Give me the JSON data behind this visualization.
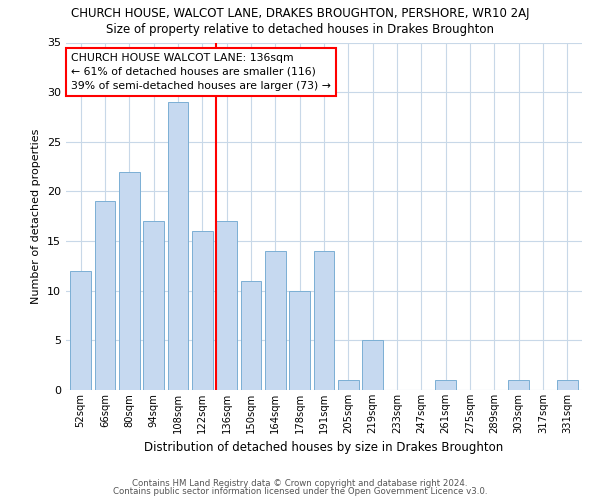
{
  "title_top": "CHURCH HOUSE, WALCOT LANE, DRAKES BROUGHTON, PERSHORE, WR10 2AJ",
  "title_sub": "Size of property relative to detached houses in Drakes Broughton",
  "xlabel": "Distribution of detached houses by size in Drakes Broughton",
  "ylabel": "Number of detached properties",
  "bin_labels": [
    "52sqm",
    "66sqm",
    "80sqm",
    "94sqm",
    "108sqm",
    "122sqm",
    "136sqm",
    "150sqm",
    "164sqm",
    "178sqm",
    "191sqm",
    "205sqm",
    "219sqm",
    "233sqm",
    "247sqm",
    "261sqm",
    "275sqm",
    "289sqm",
    "303sqm",
    "317sqm",
    "331sqm"
  ],
  "bar_values": [
    12,
    19,
    22,
    17,
    29,
    16,
    17,
    11,
    14,
    10,
    14,
    1,
    5,
    0,
    0,
    1,
    0,
    0,
    1,
    0,
    1
  ],
  "bar_color": "#c6d9f0",
  "bar_edge_color": "#7bafd4",
  "reference_line_x_label": "136sqm",
  "reference_line_color": "red",
  "annotation_title": "CHURCH HOUSE WALCOT LANE: 136sqm",
  "annotation_line1": "← 61% of detached houses are smaller (116)",
  "annotation_line2": "39% of semi-detached houses are larger (73) →",
  "annotation_box_edge": "red",
  "ylim": [
    0,
    35
  ],
  "yticks": [
    0,
    5,
    10,
    15,
    20,
    25,
    30,
    35
  ],
  "footer1": "Contains HM Land Registry data © Crown copyright and database right 2024.",
  "footer2": "Contains public sector information licensed under the Open Government Licence v3.0.",
  "background_color": "#ffffff",
  "grid_color": "#c8d8e8"
}
